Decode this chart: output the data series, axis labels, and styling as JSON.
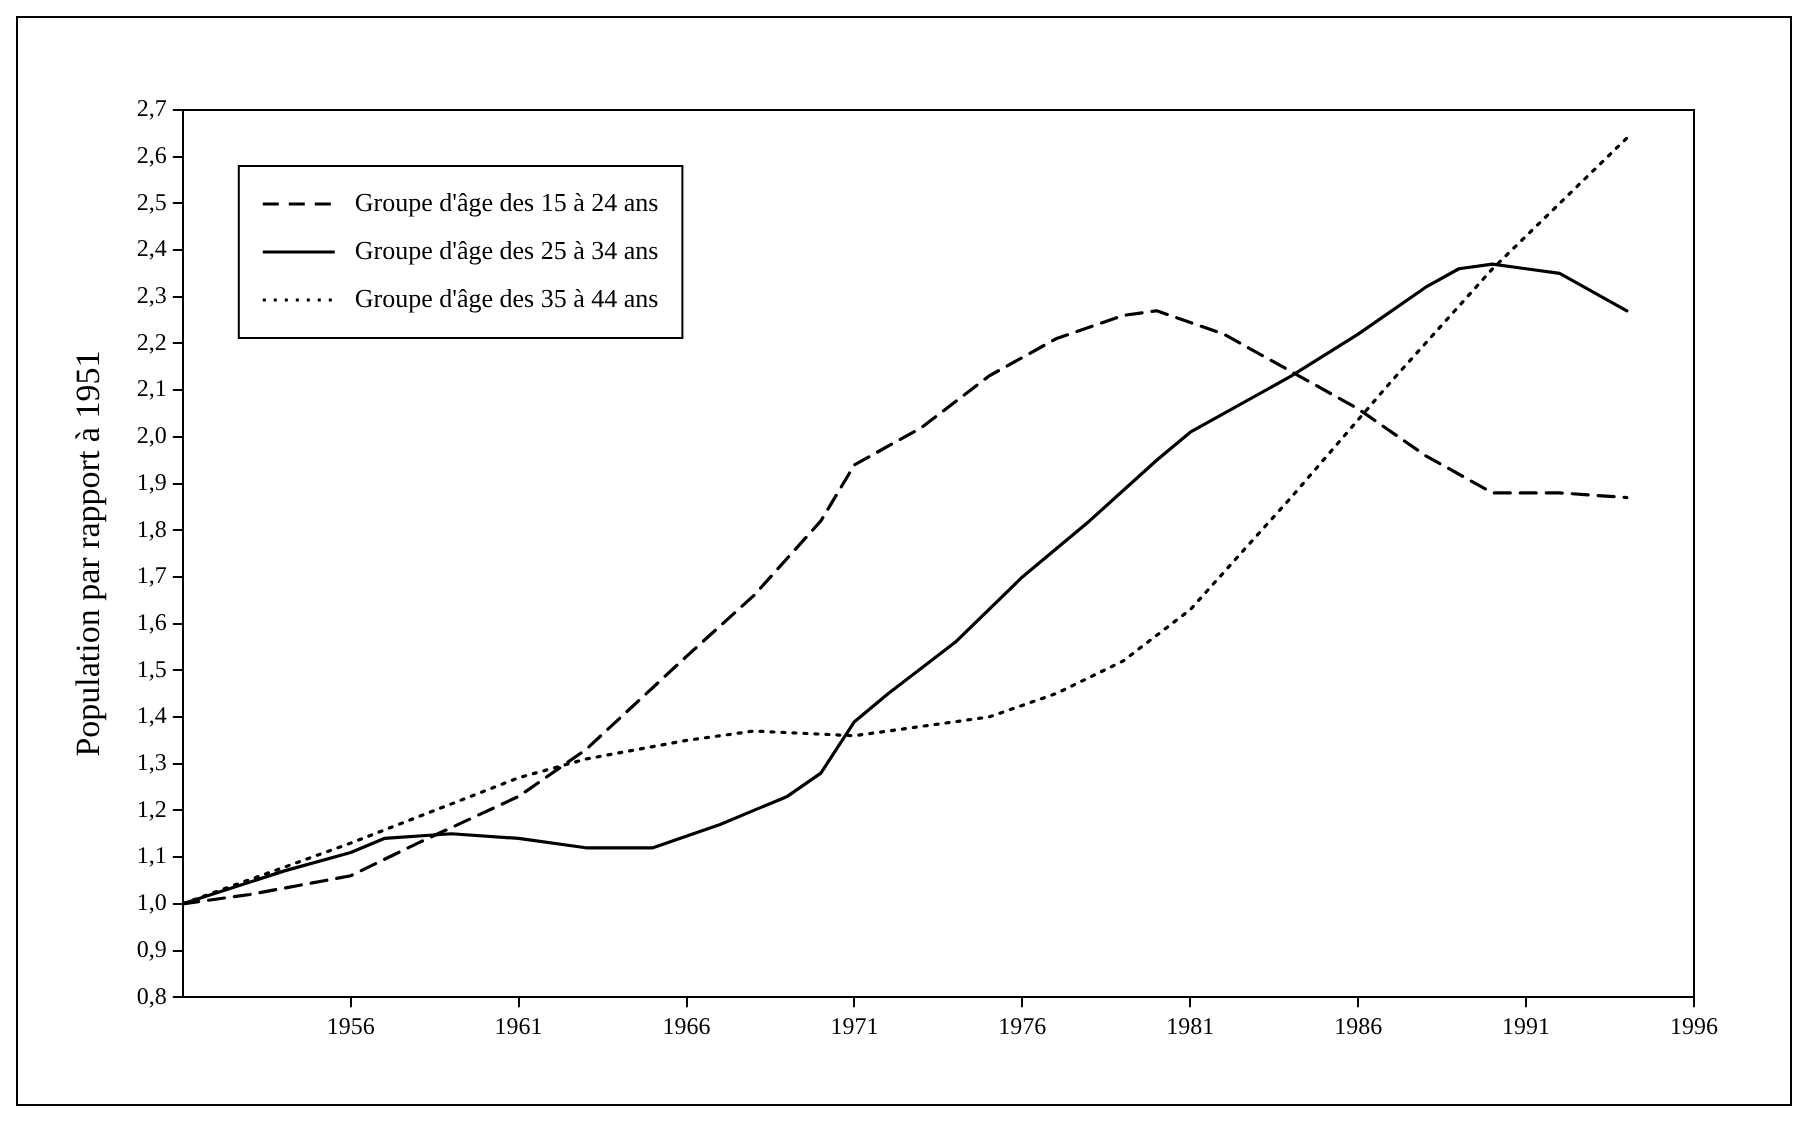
{
  "chart_data": {
    "type": "line",
    "ylabel": "Population par rapport à 1951",
    "xlim": [
      1951,
      1996
    ],
    "xticks": [
      1956,
      1961,
      1966,
      1971,
      1976,
      1981,
      1986,
      1991,
      1996
    ],
    "ylim": [
      0.8,
      2.7
    ],
    "yticks": [
      {
        "value": 0.8,
        "label": "0,8"
      },
      {
        "value": 0.9,
        "label": "0,9"
      },
      {
        "value": 1.0,
        "label": "1,0"
      },
      {
        "value": 1.1,
        "label": "1,1"
      },
      {
        "value": 1.2,
        "label": "1,2"
      },
      {
        "value": 1.3,
        "label": "1,3"
      },
      {
        "value": 1.4,
        "label": "1,4"
      },
      {
        "value": 1.5,
        "label": "1,5"
      },
      {
        "value": 1.6,
        "label": "1,6"
      },
      {
        "value": 1.7,
        "label": "1,7"
      },
      {
        "value": 1.8,
        "label": "1,8"
      },
      {
        "value": 1.9,
        "label": "1,9"
      },
      {
        "value": 2.0,
        "label": "2,0"
      },
      {
        "value": 2.1,
        "label": "2,1"
      },
      {
        "value": 2.2,
        "label": "2,2"
      },
      {
        "value": 2.3,
        "label": "2,3"
      },
      {
        "value": 2.4,
        "label": "2,4"
      },
      {
        "value": 2.5,
        "label": "2,5"
      },
      {
        "value": 2.6,
        "label": "2,6"
      },
      {
        "value": 2.7,
        "label": "2,7"
      }
    ],
    "grid": false,
    "legend": "top left",
    "marker": "none",
    "series": [
      {
        "name": "Groupe d'âge des 15 à 24 ans",
        "color": "#000000",
        "line_style": "dashed",
        "x": [
          1951,
          1953,
          1956,
          1958,
          1961,
          1963,
          1966,
          1968,
          1970,
          1971,
          1973,
          1975,
          1977,
          1979,
          1980,
          1982,
          1984,
          1986,
          1988,
          1990,
          1992,
          1994
        ],
        "values": [
          1.0,
          1.02,
          1.06,
          1.13,
          1.23,
          1.33,
          1.53,
          1.66,
          1.82,
          1.94,
          2.02,
          2.13,
          2.21,
          2.26,
          2.27,
          2.22,
          2.14,
          2.06,
          1.96,
          1.88,
          1.88,
          1.87
        ]
      },
      {
        "name": "Groupe d'âge des 25 à 34 ans",
        "color": "#000000",
        "line_style": "solid",
        "x": [
          1951,
          1954,
          1956,
          1957,
          1959,
          1961,
          1963,
          1965,
          1967,
          1969,
          1970,
          1971,
          1972,
          1974,
          1976,
          1978,
          1980,
          1981,
          1984,
          1986,
          1988,
          1989,
          1990,
          1991,
          1992,
          1993,
          1994
        ],
        "values": [
          1.0,
          1.07,
          1.11,
          1.14,
          1.15,
          1.14,
          1.12,
          1.12,
          1.17,
          1.23,
          1.28,
          1.39,
          1.45,
          1.56,
          1.7,
          1.82,
          1.95,
          2.01,
          2.13,
          2.22,
          2.32,
          2.36,
          2.37,
          2.36,
          2.35,
          2.31,
          2.27
        ]
      },
      {
        "name": "Groupe d'âge des 35 à 44 ans",
        "color": "#000000",
        "line_style": "dotted",
        "x": [
          1951,
          1956,
          1961,
          1963,
          1966,
          1968,
          1971,
          1973,
          1975,
          1977,
          1979,
          1981,
          1984,
          1987,
          1990,
          1994
        ],
        "values": [
          1.0,
          1.13,
          1.27,
          1.31,
          1.35,
          1.37,
          1.36,
          1.38,
          1.4,
          1.45,
          1.52,
          1.63,
          1.87,
          2.12,
          2.36,
          2.64
        ]
      }
    ]
  }
}
